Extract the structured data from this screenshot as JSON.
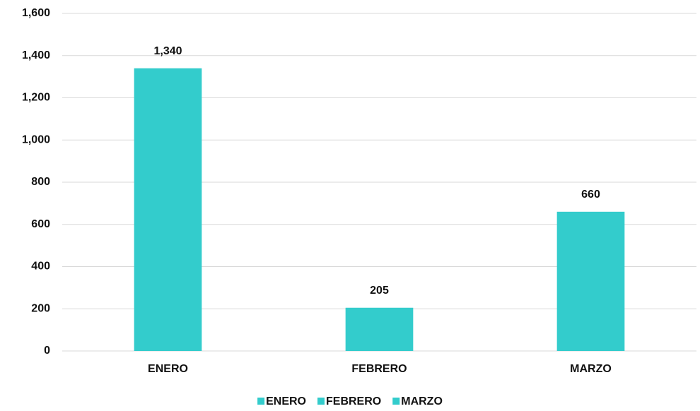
{
  "chart_data": {
    "type": "bar",
    "categories": [
      "ENERO",
      "FEBRERO",
      "MARZO"
    ],
    "values": [
      1340,
      205,
      660
    ],
    "value_labels": [
      "1,340",
      "205",
      "660"
    ],
    "color": "#33cccc",
    "ylim": [
      0,
      1600
    ],
    "yticks": [
      0,
      200,
      400,
      600,
      800,
      {
        "value": 1000,
        "label": "1,000"
      },
      {
        "value": 1200,
        "label": "1,200"
      },
      {
        "value": 1400,
        "label": "1,400"
      },
      {
        "value": 1600,
        "label": "1,600"
      }
    ],
    "grid": true,
    "legend": "bottom"
  }
}
